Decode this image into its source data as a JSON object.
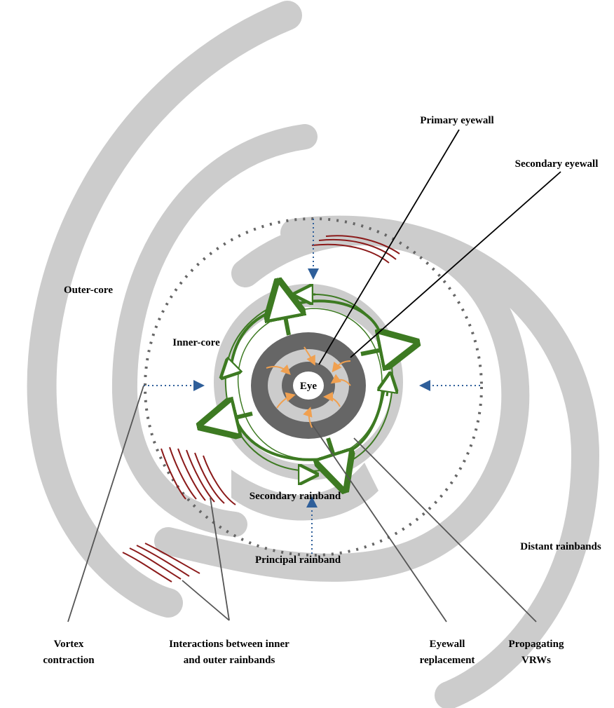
{
  "labels": {
    "primary_eyewall": "Primary eyewall",
    "secondary_eyewall": "Secondary eyewall",
    "outer_core": "Outer-core",
    "inner_core": "Inner-core",
    "eye": "Eye",
    "secondary_rainband": "Secondary rainband",
    "principal_rainband": "Principal rainband",
    "distant_rainbands": "Distant rainbands"
  },
  "processes": {
    "vortex_contraction": [
      "Vortex",
      "contraction"
    ],
    "interactions": [
      "Interactions between inner",
      "and outer rainbands"
    ],
    "eyewall_replacement": [
      "Eyewall",
      "replacement"
    ],
    "propagating_vrws": [
      "Propagating",
      "VRWs"
    ]
  }
}
